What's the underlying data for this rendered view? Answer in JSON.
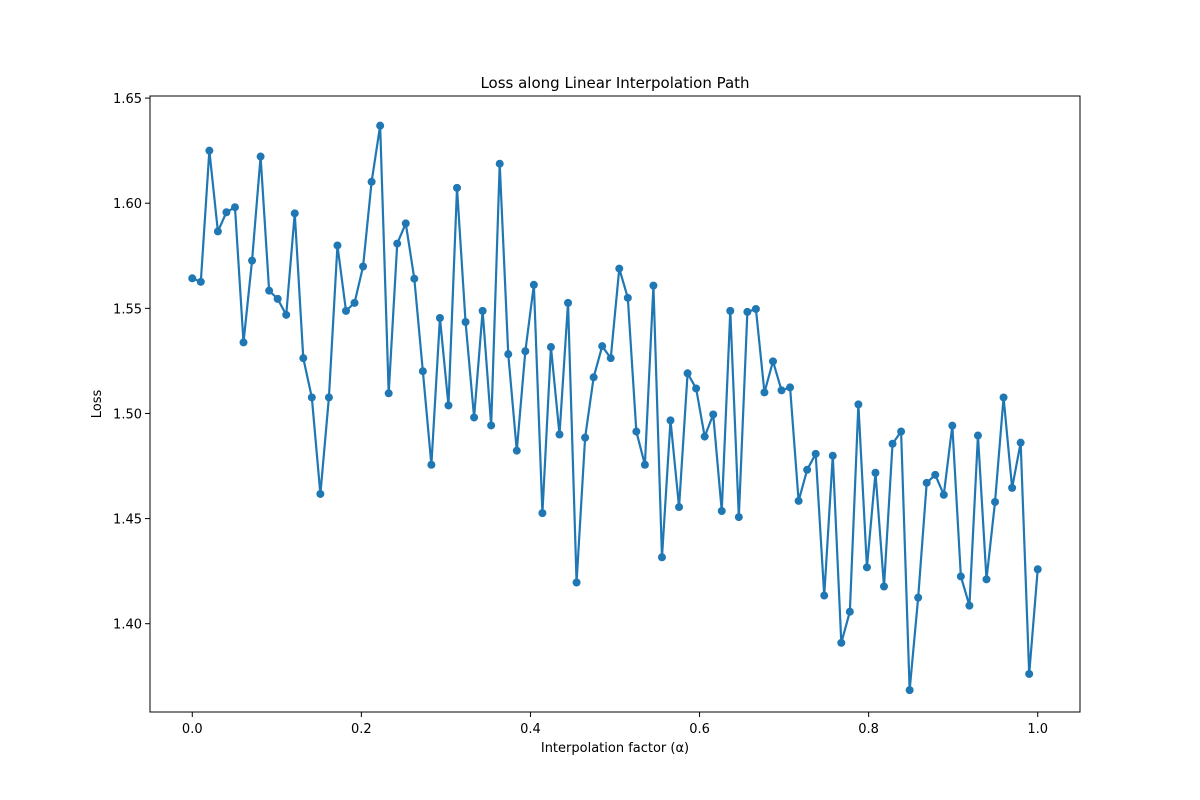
{
  "chart_data": {
    "type": "line",
    "title": "Loss along Linear Interpolation Path",
    "xlabel": "Interpolation factor (α)",
    "ylabel": "Loss",
    "xlim": [
      -0.05,
      1.05
    ],
    "ylim": [
      1.358,
      1.651
    ],
    "xticks": [
      0.0,
      0.2,
      0.4,
      0.6,
      0.8,
      1.0
    ],
    "xtick_labels": [
      "0.0",
      "0.2",
      "0.4",
      "0.6",
      "0.8",
      "1.0"
    ],
    "yticks": [
      1.4,
      1.45,
      1.5,
      1.55,
      1.6,
      1.65
    ],
    "ytick_labels": [
      "1.40",
      "1.45",
      "1.50",
      "1.55",
      "1.60",
      "1.65"
    ],
    "grid": false,
    "legend": false,
    "color": "#1f77b4",
    "series": [
      {
        "x_start": 0.0,
        "x_end": 1.0,
        "markers": true,
        "values": [
          1.5643,
          1.5626,
          1.625,
          1.5866,
          1.5957,
          1.5981,
          1.5338,
          1.5727,
          1.6222,
          1.5584,
          1.5545,
          1.5469,
          1.5952,
          1.5263,
          1.5076,
          1.4617,
          1.5076,
          1.5799,
          1.5488,
          1.5526,
          1.5699,
          1.6102,
          1.6369,
          1.5096,
          1.5808,
          1.5904,
          1.5641,
          1.5201,
          1.4756,
          1.5454,
          1.5038,
          1.6073,
          1.5435,
          1.4981,
          1.5488,
          1.4943,
          1.6188,
          1.5282,
          1.4823,
          1.5296,
          1.5612,
          1.4526,
          1.5316,
          1.49,
          1.5526,
          1.4196,
          1.4885,
          1.5172,
          1.532,
          1.5263,
          1.5689,
          1.555,
          1.4914,
          1.4756,
          1.5608,
          1.4316,
          1.4967,
          1.4555,
          1.5191,
          1.5119,
          1.489,
          1.4995,
          1.4536,
          1.5488,
          1.4507,
          1.5483,
          1.5497,
          1.51,
          1.5248,
          1.511,
          1.5124,
          1.4584,
          1.4732,
          1.4808,
          1.4134,
          1.4799,
          1.3909,
          1.4057,
          1.5043,
          1.4268,
          1.4718,
          1.4177,
          1.4856,
          1.4914,
          1.3684,
          1.4124,
          1.467,
          1.4708,
          1.4613,
          1.4942,
          1.4225,
          1.4086,
          1.4895,
          1.4211,
          1.4579,
          1.5076,
          1.4646,
          1.4861,
          1.3761,
          1.4259
        ]
      }
    ]
  }
}
